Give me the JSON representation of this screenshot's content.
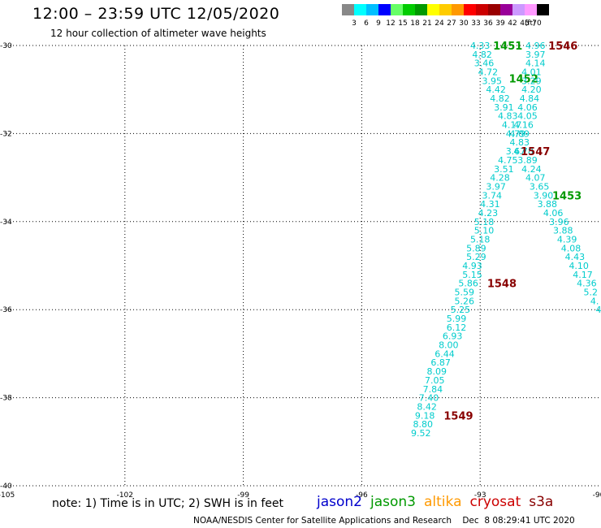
{
  "header": {
    "title": "12:00 – 23:59 UTC 12/05/2020",
    "subtitle": "12 hour collection of altimeter wave heights"
  },
  "color_scale": {
    "colors": [
      "#888888",
      "#00ffff",
      "#00bfff",
      "#0000ff",
      "#66ff66",
      "#00cc00",
      "#009900",
      "#ffff00",
      "#ffcc00",
      "#ff9900",
      "#ff0000",
      "#cc0000",
      "#990000",
      "#990099",
      "#cc99ff",
      "#ff99ff",
      "#000000"
    ],
    "labels": [
      "3",
      "6",
      "9",
      "12",
      "15",
      "18",
      "21",
      "24",
      "27",
      "30",
      "33",
      "36",
      "39",
      "42",
      "45",
      "70"
    ],
    "unit": "(ft)"
  },
  "map": {
    "lon_range": [
      -105,
      -90
    ],
    "lat_range": [
      -40,
      -30
    ],
    "lon_ticks": [
      "-105",
      "-102",
      "-99",
      "-96",
      "-93",
      "-90"
    ],
    "lat_ticks": [
      "-30",
      "-32",
      "-34",
      "-36",
      "-38",
      "-40"
    ]
  },
  "tracks": [
    {
      "name": "jason3_1451",
      "color": "#00cccc",
      "label_color": "#009900",
      "time": "1451",
      "time_pos": [
        -92.3,
        -30.0
      ],
      "points": [
        [
          -93.0,
          -30.0,
          "4.33"
        ],
        [
          -92.95,
          -30.2,
          "4.82"
        ],
        [
          -92.9,
          -30.4,
          "3.46"
        ],
        [
          -92.8,
          -30.6,
          "4.72"
        ],
        [
          -92.7,
          -30.8,
          "3.95"
        ],
        [
          -92.6,
          -31.0,
          "4.42"
        ],
        [
          -92.5,
          -31.2,
          "4.82"
        ],
        [
          -92.4,
          -31.4,
          "3.91"
        ],
        [
          -92.3,
          -31.6,
          "4.83"
        ],
        [
          -92.2,
          -31.8,
          "4.17"
        ],
        [
          -92.1,
          -32.0,
          "4.79"
        ],
        [
          -92.0,
          -32.2,
          "4.83"
        ],
        [
          -91.9,
          -32.4,
          "4.78"
        ],
        [
          -91.8,
          -32.6,
          "3.89"
        ],
        [
          -91.7,
          -32.8,
          "4.24"
        ],
        [
          -91.6,
          -33.0,
          "4.07"
        ],
        [
          -91.5,
          -33.2,
          "3.65"
        ],
        [
          -91.4,
          -33.4,
          "3.90"
        ],
        [
          -91.3,
          -33.6,
          "3.88"
        ],
        [
          -91.15,
          -33.8,
          "4.06"
        ],
        [
          -91.0,
          -34.0,
          "3.96"
        ],
        [
          -90.9,
          -34.2,
          "3.88"
        ],
        [
          -90.8,
          -34.4,
          "4.39"
        ],
        [
          -90.7,
          -34.6,
          "4.08"
        ],
        [
          -90.6,
          -34.8,
          "4.43"
        ],
        [
          -90.5,
          -35.0,
          "4.10"
        ],
        [
          -90.4,
          -35.2,
          "4.17"
        ],
        [
          -90.3,
          -35.4,
          "4.36"
        ],
        [
          -90.2,
          -35.6,
          "5.2"
        ],
        [
          -90.1,
          -35.8,
          "4."
        ],
        [
          -90.0,
          -36.0,
          "4"
        ]
      ]
    },
    {
      "name": "jason3_1452",
      "color": "#00cccc",
      "label_color": "#009900",
      "time": "1452",
      "time_pos": [
        -91.9,
        -30.75
      ],
      "points": []
    },
    {
      "name": "jason3_1453",
      "color": "#00cccc",
      "label_color": "#009900",
      "time": "1453",
      "time_pos": [
        -90.8,
        -33.4
      ],
      "points": []
    },
    {
      "name": "cryosat_1546",
      "color": "#00cccc",
      "label_color": "#880000",
      "time": "1546",
      "time_pos": [
        -90.9,
        -30.0
      ],
      "points": [
        [
          -91.6,
          -30.0,
          "4.96"
        ],
        [
          -91.6,
          -30.2,
          "3.97"
        ],
        [
          -91.6,
          -30.4,
          "4.14"
        ],
        [
          -91.7,
          -30.6,
          "4.01"
        ],
        [
          -91.7,
          -30.8,
          "3.29"
        ],
        [
          -91.7,
          -31.0,
          "4.20"
        ],
        [
          -91.75,
          -31.2,
          "4.84"
        ],
        [
          -91.8,
          -31.4,
          "4.06"
        ],
        [
          -91.8,
          -31.6,
          "4.05"
        ],
        [
          -91.9,
          -31.8,
          "4.16"
        ],
        [
          -92.0,
          -32.0,
          "4.09"
        ]
      ]
    },
    {
      "name": "cryosat_1547",
      "color": "#00cccc",
      "label_color": "#880000",
      "time": "1547",
      "time_pos": [
        -91.6,
        -32.4
      ],
      "points": [
        [
          -92.1,
          -32.4,
          "3.67"
        ],
        [
          -92.3,
          -32.6,
          "4.75"
        ],
        [
          -92.4,
          -32.8,
          "3.51"
        ],
        [
          -92.5,
          -33.0,
          "4.28"
        ],
        [
          -92.6,
          -33.2,
          "3.97"
        ],
        [
          -92.7,
          -33.4,
          "3.74"
        ],
        [
          -92.75,
          -33.6,
          "4.31"
        ],
        [
          -92.8,
          -33.8,
          "4.23"
        ],
        [
          -92.9,
          -34.0,
          "5.18"
        ],
        [
          -92.9,
          -34.2,
          "5.10"
        ],
        [
          -93.0,
          -34.4,
          "5.18"
        ],
        [
          -93.1,
          -34.6,
          "5.89"
        ],
        [
          -93.1,
          -34.8,
          "5.29"
        ],
        [
          -93.2,
          -35.0,
          "4.93"
        ],
        [
          -93.2,
          -35.2,
          "5.15"
        ],
        [
          -93.3,
          -35.4,
          "5.86"
        ]
      ]
    },
    {
      "name": "cryosat_1548",
      "color": "#00cccc",
      "label_color": "#880000",
      "time": "1548",
      "time_pos": [
        -92.45,
        -35.4
      ],
      "points": [
        [
          -93.4,
          -35.6,
          "5.59"
        ],
        [
          -93.4,
          -35.8,
          "5.26"
        ],
        [
          -93.5,
          -36.0,
          "5.25"
        ],
        [
          -93.6,
          -36.2,
          "5.99"
        ],
        [
          -93.6,
          -36.4,
          "6.12"
        ],
        [
          -93.7,
          -36.6,
          "6.93"
        ],
        [
          -93.8,
          -36.8,
          "8.00"
        ],
        [
          -93.9,
          -37.0,
          "6.44"
        ],
        [
          -94.0,
          -37.2,
          "6.87"
        ],
        [
          -94.1,
          -37.4,
          "8.09"
        ],
        [
          -94.15,
          -37.6,
          "7.05"
        ],
        [
          -94.2,
          -37.8,
          "7.84"
        ],
        [
          -94.3,
          -38.0,
          "7.40"
        ],
        [
          -94.35,
          -38.2,
          "8.42"
        ],
        [
          -94.4,
          -38.4,
          "9.18"
        ],
        [
          -94.45,
          -38.6,
          "8.80"
        ],
        [
          -94.5,
          -38.8,
          "9.52"
        ]
      ]
    },
    {
      "name": "cryosat_1549",
      "color": "#0000cc",
      "label_color": "#880000",
      "time": "1549",
      "time_pos": [
        -93.55,
        -38.4
      ],
      "points": []
    }
  ],
  "note": "note:  1) Time is in UTC;  2) SWH is in feet",
  "legend": [
    {
      "label": "jason2",
      "color": "#0000cc"
    },
    {
      "label": "jason3",
      "color": "#009900"
    },
    {
      "label": "altika",
      "color": "#ff9900"
    },
    {
      "label": "cryosat",
      "color": "#cc0000"
    },
    {
      "label": "s3a",
      "color": "#880000"
    }
  ],
  "footer": "NOAA/NESDIS Center for Satellite Applications and Research    Dec  8 08:29:41 UTC 2020"
}
